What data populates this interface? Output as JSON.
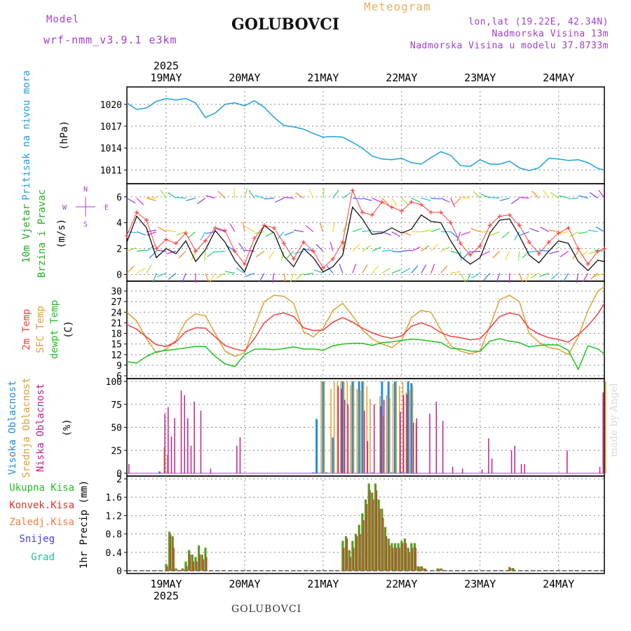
{
  "header": {
    "model_label": "Model",
    "model_name": "wrf-nmm_v3.9.1 e3km",
    "station": "GOLUBOVCI",
    "product": "Meteogram",
    "lonlat": "lon,lat (19.22E, 42.34N)",
    "elevation": "Nadmorska Visina 13m",
    "model_elevation": "Nadmorska Visina u modelu 37.8733m"
  },
  "footer": {
    "station": "GOLUBOVCI",
    "credit": "made by Angel"
  },
  "colors": {
    "pressure": "#1ea0e0",
    "wind_speed": "#000000",
    "wind_gust": "#ff4040",
    "t2m": "#ee4040",
    "tsfc": "#e0a030",
    "dewpt": "#20c020",
    "cloud_high": "#2090e0",
    "cloud_mid": "#e0a030",
    "cloud_low": "#c02090",
    "precip_total": "#5a9a20",
    "precip_conv": "#e03030",
    "grid": "#888888"
  },
  "chart_data": [
    {
      "type": "line",
      "panel": "pressure",
      "ylabel_lines": [
        "Pritisak na nivou mora",
        "(hPa)"
      ],
      "ylim": [
        1009.5,
        1022
      ],
      "yticks": [
        1011,
        1014,
        1017,
        1020
      ],
      "x_hours": [
        0,
        3,
        6,
        9,
        12,
        15,
        18,
        21,
        24,
        27,
        30,
        33,
        36,
        39,
        42,
        45,
        48,
        51,
        54,
        57,
        60,
        63,
        66,
        69,
        72,
        75,
        78,
        81,
        84,
        87,
        90,
        93,
        96,
        99,
        102,
        105,
        108,
        111,
        114,
        117,
        120,
        123,
        126,
        129,
        132,
        135,
        138,
        141,
        144,
        146
      ],
      "values": [
        1020.2,
        1019.3,
        1019.5,
        1020.4,
        1020.8,
        1020.6,
        1020.8,
        1020.2,
        1018.2,
        1018.8,
        1020.0,
        1020.2,
        1019.8,
        1020.5,
        1019.6,
        1018.2,
        1017.1,
        1016.9,
        1016.6,
        1016.0,
        1015.5,
        1015.6,
        1015.5,
        1014.8,
        1014.0,
        1012.9,
        1012.5,
        1012.4,
        1012.6,
        1012.0,
        1011.8,
        1012.7,
        1013.5,
        1013.0,
        1011.6,
        1011.5,
        1012.4,
        1011.8,
        1011.8,
        1012.2,
        1011.3,
        1010.9,
        1011.3,
        1012.6,
        1012.5,
        1012.3,
        1012.4,
        1012.0,
        1011.2,
        1011.0
      ]
    },
    {
      "type": "line",
      "panel": "wind",
      "ylabel_lines": [
        "10m Vjetar",
        "Brzina i Pravac",
        "(m/s)"
      ],
      "compass": [
        "N",
        "W",
        "E",
        "S"
      ],
      "ylim": [
        -0.3,
        6.8
      ],
      "yticks": [
        0,
        2,
        4,
        6
      ],
      "x_hours": [
        0,
        3,
        6,
        9,
        12,
        15,
        18,
        21,
        24,
        27,
        30,
        33,
        36,
        39,
        42,
        45,
        48,
        51,
        54,
        57,
        60,
        63,
        66,
        69,
        72,
        75,
        78,
        81,
        84,
        87,
        90,
        93,
        96,
        99,
        102,
        105,
        108,
        111,
        114,
        117,
        120,
        123,
        126,
        129,
        132,
        135,
        138,
        141,
        144,
        146
      ],
      "speed": [
        2.5,
        4.5,
        3.6,
        1.3,
        2.0,
        1.6,
        2.6,
        1.0,
        1.9,
        3.4,
        2.5,
        1.1,
        0.2,
        2.2,
        3.8,
        3.2,
        1.4,
        0.6,
        2.0,
        1.3,
        0.2,
        0.6,
        1.5,
        5.2,
        4.3,
        3.1,
        3.2,
        3.6,
        3.2,
        3.5,
        4.6,
        4.1,
        4.0,
        2.6,
        1.4,
        0.8,
        1.3,
        3.2,
        4.2,
        4.3,
        3.0,
        1.5,
        0.9,
        1.8,
        2.6,
        2.4,
        1.0,
        0.3,
        1.1,
        1.0
      ],
      "gust": [
        3.0,
        4.8,
        4.2,
        2.0,
        2.7,
        2.4,
        3.2,
        1.8,
        2.6,
        3.6,
        3.4,
        1.8,
        0.8,
        2.8,
        3.8,
        3.6,
        2.4,
        1.2,
        2.5,
        1.8,
        0.5,
        1.2,
        2.5,
        6.5,
        4.8,
        4.6,
        5.6,
        5.2,
        4.9,
        5.6,
        5.4,
        4.8,
        4.8,
        4.0,
        2.4,
        1.5,
        2.2,
        3.8,
        4.5,
        4.6,
        3.8,
        2.5,
        1.6,
        2.5,
        3.2,
        3.6,
        2.0,
        0.8,
        1.8,
        2.0
      ],
      "direction_deg": [
        45,
        60,
        30,
        200,
        250,
        230,
        200,
        180,
        160,
        210,
        240,
        280,
        300,
        250,
        210,
        190,
        170,
        200,
        230,
        260,
        290,
        320,
        340,
        20,
        30,
        40,
        60,
        70,
        60,
        40,
        30,
        20,
        40,
        80,
        150,
        200,
        240,
        220,
        200,
        180,
        160,
        200,
        240,
        250,
        230,
        210,
        190,
        210,
        230,
        250
      ]
    },
    {
      "type": "line",
      "panel": "temperature",
      "ylabel_lines": [
        "2m Temp",
        "SFC Temp",
        "dewpt Temp",
        "(C)"
      ],
      "ylim": [
        6,
        32
      ],
      "yticks": [
        6,
        9,
        12,
        15,
        18,
        21,
        24,
        27,
        30
      ],
      "x_hours": [
        0,
        3,
        6,
        9,
        12,
        15,
        18,
        21,
        24,
        27,
        30,
        33,
        36,
        39,
        42,
        45,
        48,
        51,
        54,
        57,
        60,
        63,
        66,
        69,
        72,
        75,
        78,
        81,
        84,
        87,
        90,
        93,
        96,
        99,
        102,
        105,
        108,
        111,
        114,
        117,
        120,
        123,
        126,
        129,
        132,
        135,
        138,
        141,
        144,
        146
      ],
      "t2m": [
        20.5,
        19.2,
        17.0,
        14.8,
        14.3,
        15.6,
        18.5,
        19.6,
        19.5,
        17.0,
        14.6,
        13.6,
        13.0,
        16.5,
        21.0,
        23.2,
        23.8,
        22.8,
        19.6,
        18.8,
        18.9,
        21.2,
        22.5,
        21.2,
        19.5,
        18.2,
        17.2,
        16.6,
        17.3,
        20.0,
        21.0,
        20.0,
        18.2,
        17.2,
        16.8,
        16.2,
        16.5,
        19.5,
        22.8,
        23.8,
        23.2,
        19.5,
        17.8,
        16.8,
        16.3,
        15.5,
        17.6,
        20.2,
        23.5,
        26.5
      ],
      "tsfc": [
        24.0,
        21.5,
        16.5,
        12.5,
        13.5,
        16.0,
        21.5,
        23.5,
        23.0,
        18.0,
        13.0,
        11.5,
        12.5,
        20.0,
        27.0,
        28.8,
        28.5,
        26.5,
        18.5,
        17.0,
        19.5,
        24.5,
        26.5,
        23.0,
        19.0,
        16.5,
        15.0,
        14.0,
        16.0,
        22.5,
        24.5,
        24.0,
        19.0,
        14.5,
        13.0,
        12.2,
        13.0,
        20.0,
        27.5,
        28.8,
        27.0,
        18.0,
        15.5,
        14.0,
        13.5,
        12.0,
        17.0,
        24.5,
        30.0,
        31.2
      ],
      "dewpt": [
        10.0,
        9.6,
        11.5,
        12.8,
        13.2,
        13.5,
        13.9,
        14.3,
        14.3,
        11.5,
        9.4,
        8.6,
        12.0,
        13.5,
        13.6,
        13.4,
        13.7,
        14.2,
        13.6,
        13.6,
        13.2,
        14.5,
        15.0,
        15.2,
        15.2,
        14.6,
        15.4,
        15.6,
        16.0,
        16.4,
        16.2,
        15.8,
        15.4,
        13.8,
        13.6,
        13.0,
        12.9,
        15.8,
        16.5,
        15.8,
        15.4,
        14.2,
        14.6,
        14.8,
        14.7,
        13.2,
        7.8,
        14.5,
        13.6,
        12.2
      ]
    },
    {
      "type": "bar",
      "panel": "cloud",
      "ylabel_lines": [
        "Visoka Oblacnost",
        "Srednja Oblacnost",
        "Niska Oblacnost",
        "(%)"
      ],
      "ylim": [
        0,
        100
      ],
      "yticks": [
        0,
        25,
        50,
        75,
        100
      ],
      "series": [
        {
          "name": "Visoka Oblacnost",
          "key": "cloud_high",
          "x_hours": [
            10,
            57,
            58,
            60,
            61,
            63,
            66,
            69,
            71,
            72,
            75,
            78,
            80,
            81,
            82,
            84,
            86,
            87
          ],
          "values": [
            2,
            1,
            59,
            100,
            1,
            39,
            100,
            100,
            100,
            100,
            1,
            100,
            100,
            1,
            100,
            1,
            100,
            98
          ]
        },
        {
          "name": "Srednja Oblacnost",
          "key": "cloud_mid",
          "x_hours": [
            11,
            12,
            59,
            60,
            62,
            63,
            64,
            65,
            66,
            67,
            68,
            69,
            70,
            71,
            72,
            73,
            74,
            75,
            76,
            77,
            78,
            79,
            80,
            81,
            82,
            83,
            84,
            85,
            86,
            87,
            88,
            146
          ],
          "values": [
            28,
            20,
            100,
            100,
            92,
            100,
            100,
            100,
            100,
            100,
            96,
            100,
            92,
            90,
            100,
            95,
            81,
            0,
            0,
            84,
            62,
            85,
            82,
            98,
            100,
            95,
            100,
            88,
            90,
            95,
            55,
            100
          ]
        },
        {
          "name": "Niska Oblacnost",
          "key": "cloud_low",
          "x_hours": [
            1,
            12,
            13,
            14,
            15,
            17,
            18,
            19,
            20,
            21,
            23,
            26,
            34,
            35,
            65,
            66,
            67,
            68,
            73,
            74,
            76,
            78,
            79,
            84,
            85,
            86,
            88,
            89,
            93,
            95,
            97,
            100,
            103,
            109,
            111,
            112,
            118,
            119,
            121,
            122,
            135,
            145,
            146
          ],
          "values": [
            10,
            65,
            72,
            40,
            60,
            90,
            85,
            60,
            30,
            78,
            68,
            5,
            30,
            39,
            95,
            92,
            80,
            75,
            68,
            35,
            75,
            73,
            80,
            67,
            85,
            86,
            55,
            60,
            65,
            78,
            57,
            7,
            5,
            4,
            38,
            16,
            25,
            30,
            10,
            10,
            25,
            7,
            88
          ]
        }
      ]
    },
    {
      "type": "bar",
      "panel": "precip",
      "ylabel_lines": [
        "1hr Precip (mm)"
      ],
      "legend": [
        "Ukupna Kisa",
        "Konvek.Kisa",
        "Zaledj.Kisa",
        "Snijeg",
        "Grad"
      ],
      "legend_keys": [
        "precip_total",
        "precip_conv",
        "precip_frozen",
        "snow",
        "hail"
      ],
      "ylim": [
        0,
        2
      ],
      "yticks": [
        0,
        0.4,
        0.8,
        1.2,
        1.6,
        2
      ],
      "x_hours": [
        12,
        13,
        14,
        15,
        17,
        18,
        19,
        20,
        21,
        22,
        23,
        24,
        66,
        67,
        68,
        69,
        70,
        71,
        72,
        73,
        74,
        75,
        76,
        77,
        78,
        79,
        80,
        81,
        82,
        83,
        84,
        85,
        86,
        87,
        88,
        89,
        90,
        91,
        95,
        96,
        117,
        118
      ],
      "total": [
        0.15,
        0.85,
        0.75,
        0.05,
        0.05,
        0.2,
        0.45,
        0.35,
        0.3,
        0.55,
        0.35,
        0.5,
        0.65,
        0.75,
        0.45,
        0.65,
        0.8,
        1.0,
        1.25,
        1.55,
        1.9,
        1.7,
        1.9,
        1.55,
        1.35,
        0.95,
        0.7,
        0.6,
        0.6,
        0.6,
        0.65,
        0.7,
        0.5,
        0.6,
        0.6,
        0.1,
        0.1,
        0.05,
        0.05,
        0.05,
        0.08,
        0.06
      ],
      "conv": [
        0.1,
        0.8,
        0.5,
        0.02,
        0.03,
        0.1,
        0.35,
        0.2,
        0.2,
        0.35,
        0.25,
        0.3,
        0.5,
        0.7,
        0.3,
        0.5,
        0.75,
        0.8,
        1.1,
        1.45,
        1.75,
        1.55,
        1.75,
        1.35,
        1.15,
        0.75,
        0.55,
        0.5,
        0.5,
        0.5,
        0.6,
        0.6,
        0.4,
        0.5,
        0.5,
        0.08,
        0.08,
        0.04,
        0.04,
        0.04,
        0.05,
        0.04
      ]
    }
  ],
  "time_axis": {
    "year": "2025",
    "day_labels": [
      "19MAY",
      "20MAY",
      "21MAY",
      "22MAY",
      "23MAY",
      "24MAY"
    ],
    "start_hour_offset": 0,
    "total_hours": 146
  }
}
